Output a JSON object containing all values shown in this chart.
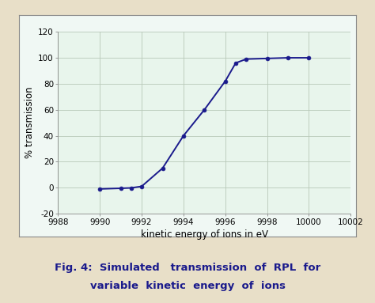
{
  "x": [
    9990,
    9991,
    9991.5,
    9992,
    9993,
    9994,
    9995,
    9996,
    9996.5,
    9997,
    9998,
    9999,
    10000
  ],
  "y": [
    -1,
    -0.5,
    -0.2,
    1,
    15,
    40,
    60,
    82,
    96,
    99,
    99.5,
    100,
    100
  ],
  "line_color": "#1a1a8c",
  "marker_color": "#1a1a8c",
  "marker": "o",
  "marker_size": 3.5,
  "xlim": [
    9988,
    10002
  ],
  "ylim": [
    -20,
    120
  ],
  "xticks": [
    9988,
    9990,
    9992,
    9994,
    9996,
    9998,
    10000,
    10002
  ],
  "yticks": [
    -20,
    0,
    20,
    40,
    60,
    80,
    100,
    120
  ],
  "ytick_labels": [
    "-20",
    "0",
    "20",
    "40",
    "60",
    "80",
    "100",
    "120"
  ],
  "xlabel": "kinetic energy of ions in eV",
  "ylabel": "% transmission",
  "plot_bg_color": "#e8f5ec",
  "chart_box_bg": "#f0f8f4",
  "outer_bg": "#e8dfc8",
  "caption_line1": "Fig. 4:  Simulated   transmission  of  RPL  for",
  "caption_line2": "variable  kinetic  energy  of  ions",
  "caption_color": "#1a1a8c",
  "grid_color": "#b8c8b8",
  "axis_label_fontsize": 8.5,
  "tick_fontsize": 7.5,
  "caption_fontsize": 9.5
}
